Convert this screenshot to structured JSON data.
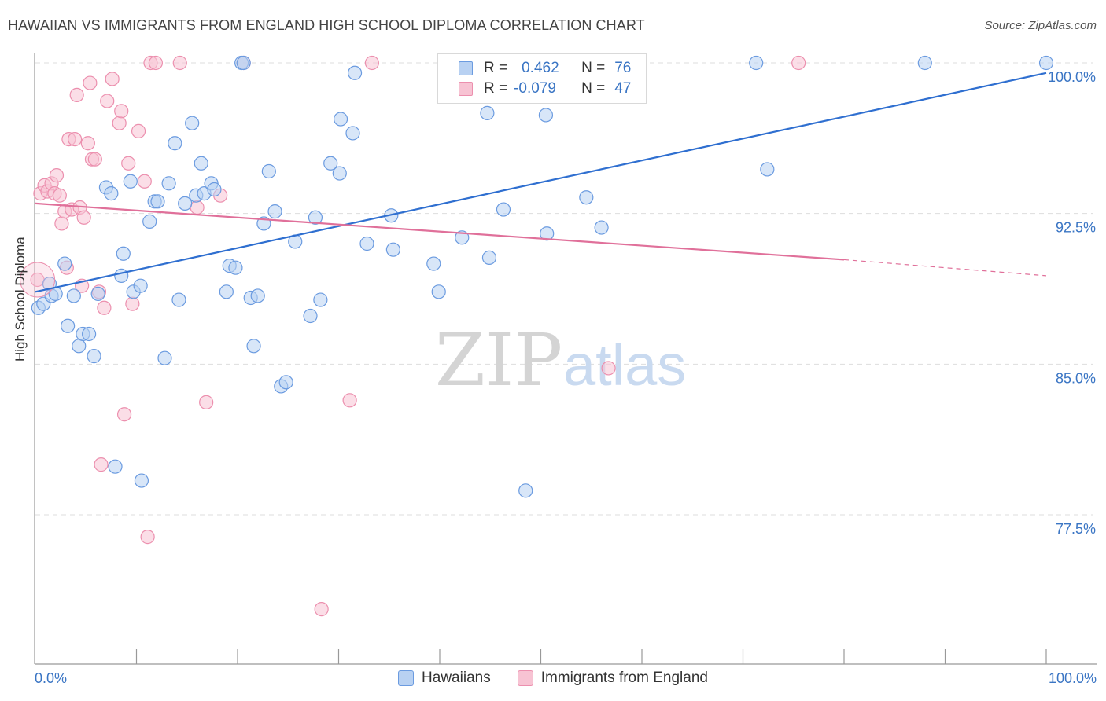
{
  "header": {
    "title": "HAWAIIAN VS IMMIGRANTS FROM ENGLAND HIGH SCHOOL DIPLOMA CORRELATION CHART",
    "source": "Source: ZipAtlas.com"
  },
  "legend": {
    "series1": {
      "r_label": "R =",
      "r_value": "0.462",
      "n_label": "N =",
      "n_value": "76"
    },
    "series2": {
      "r_label": "R =",
      "r_value": "-0.079",
      "n_label": "N =",
      "n_value": "47"
    }
  },
  "bottom_legend": {
    "series1": "Hawaiians",
    "series2": "Immigrants from England"
  },
  "watermark": {
    "zip": "ZIP",
    "atlas": "atlas"
  },
  "colors": {
    "blue_fill": "#b8d1f2",
    "blue_stroke": "#6b9be0",
    "blue_line": "#2f6fd0",
    "pink_fill": "#f7c3d3",
    "pink_stroke": "#ec8fae",
    "pink_line": "#e0709a",
    "axis_label": "#3a75c4",
    "grid": "#dddddd"
  },
  "chart_data": {
    "type": "scatter",
    "title": "HAWAIIAN VS IMMIGRANTS FROM ENGLAND HIGH SCHOOL DIPLOMA CORRELATION CHART",
    "xlabel": "",
    "ylabel": "High School Diploma",
    "xlim": [
      0,
      100
    ],
    "ylim": [
      71.0,
      101.5
    ],
    "x_tick_labels": [
      "0.0%",
      "100.0%"
    ],
    "y_ticks": [
      77.5,
      85.0,
      92.5,
      100.0
    ],
    "y_tick_labels": [
      "77.5%",
      "85.0%",
      "92.5%",
      "100.0%"
    ],
    "grid": true,
    "legend_position": "top-center",
    "series": [
      {
        "name": "Hawaiians",
        "color": "#6b9be0",
        "r": 0.462,
        "n": 76,
        "trend": {
          "x": [
            0,
            100
          ],
          "y": [
            88.6,
            99.5
          ],
          "extended_to": 100
        },
        "points": [
          [
            0.3,
            87.8
          ],
          [
            0.8,
            88.0
          ],
          [
            1.4,
            89.0
          ],
          [
            1.6,
            88.4
          ],
          [
            2.0,
            88.5
          ],
          [
            2.9,
            90.0
          ],
          [
            3.2,
            86.9
          ],
          [
            3.8,
            88.4
          ],
          [
            4.3,
            85.9
          ],
          [
            4.7,
            86.5
          ],
          [
            5.3,
            86.5
          ],
          [
            5.8,
            85.4
          ],
          [
            6.2,
            88.5
          ],
          [
            7.0,
            93.8
          ],
          [
            7.5,
            93.5
          ],
          [
            7.9,
            79.9
          ],
          [
            8.5,
            89.4
          ],
          [
            8.7,
            90.5
          ],
          [
            9.4,
            94.1
          ],
          [
            9.7,
            88.6
          ],
          [
            10.4,
            88.9
          ],
          [
            10.5,
            79.2
          ],
          [
            11.3,
            92.1
          ],
          [
            11.8,
            93.1
          ],
          [
            12.1,
            93.1
          ],
          [
            12.8,
            85.3
          ],
          [
            13.2,
            94.0
          ],
          [
            13.8,
            96.0
          ],
          [
            14.2,
            88.2
          ],
          [
            14.8,
            93.0
          ],
          [
            15.5,
            97.0
          ],
          [
            15.9,
            93.4
          ],
          [
            16.4,
            95.0
          ],
          [
            16.7,
            93.5
          ],
          [
            17.4,
            94.0
          ],
          [
            17.7,
            93.7
          ],
          [
            18.9,
            88.6
          ],
          [
            19.2,
            89.9
          ],
          [
            19.8,
            89.8
          ],
          [
            20.4,
            100.0
          ],
          [
            20.6,
            100.0
          ],
          [
            21.3,
            88.3
          ],
          [
            21.6,
            85.9
          ],
          [
            22.0,
            88.4
          ],
          [
            22.6,
            92.0
          ],
          [
            23.1,
            94.6
          ],
          [
            23.7,
            92.6
          ],
          [
            24.3,
            83.9
          ],
          [
            24.8,
            84.1
          ],
          [
            25.7,
            91.1
          ],
          [
            27.2,
            87.4
          ],
          [
            27.7,
            92.3
          ],
          [
            28.2,
            88.2
          ],
          [
            29.2,
            95.0
          ],
          [
            30.1,
            94.5
          ],
          [
            30.2,
            97.2
          ],
          [
            31.4,
            96.5
          ],
          [
            31.6,
            99.5
          ],
          [
            32.8,
            91.0
          ],
          [
            35.2,
            92.4
          ],
          [
            35.4,
            90.7
          ],
          [
            39.4,
            90.0
          ],
          [
            39.9,
            88.6
          ],
          [
            42.2,
            91.3
          ],
          [
            44.7,
            97.5
          ],
          [
            44.9,
            90.3
          ],
          [
            46.3,
            92.7
          ],
          [
            48.5,
            78.7
          ],
          [
            50.2,
            100.0
          ],
          [
            50.5,
            97.4
          ],
          [
            50.6,
            91.5
          ],
          [
            54.5,
            93.3
          ],
          [
            56.0,
            91.8
          ],
          [
            71.3,
            100.0
          ],
          [
            72.4,
            94.7
          ],
          [
            88.0,
            100.0
          ],
          [
            100.0,
            100.0
          ]
        ]
      },
      {
        "name": "Immigrants from England",
        "color": "#ec8fae",
        "r": -0.079,
        "n": 47,
        "trend": {
          "x": [
            0,
            80
          ],
          "y": [
            93.0,
            90.2
          ],
          "dashed_to": [
            100,
            89.4
          ]
        },
        "points": [
          [
            0.2,
            89.2
          ],
          [
            0.5,
            93.5
          ],
          [
            0.9,
            93.9
          ],
          [
            1.2,
            93.6
          ],
          [
            1.6,
            94.0
          ],
          [
            1.9,
            93.5
          ],
          [
            2.1,
            94.4
          ],
          [
            2.4,
            93.4
          ],
          [
            2.6,
            92.0
          ],
          [
            2.9,
            92.6
          ],
          [
            3.1,
            89.8
          ],
          [
            3.3,
            96.2
          ],
          [
            3.6,
            92.7
          ],
          [
            3.9,
            96.2
          ],
          [
            4.1,
            98.4
          ],
          [
            4.4,
            92.8
          ],
          [
            4.6,
            88.9
          ],
          [
            4.8,
            92.3
          ],
          [
            5.2,
            96.0
          ],
          [
            5.4,
            99.0
          ],
          [
            5.6,
            95.2
          ],
          [
            5.9,
            95.2
          ],
          [
            6.3,
            88.6
          ],
          [
            6.5,
            80.0
          ],
          [
            6.8,
            87.8
          ],
          [
            7.1,
            98.1
          ],
          [
            7.6,
            99.2
          ],
          [
            8.3,
            97.0
          ],
          [
            8.5,
            97.6
          ],
          [
            8.8,
            82.5
          ],
          [
            9.2,
            95.0
          ],
          [
            9.6,
            88.0
          ],
          [
            10.2,
            96.6
          ],
          [
            10.8,
            94.1
          ],
          [
            11.1,
            76.4
          ],
          [
            11.4,
            100.0
          ],
          [
            11.9,
            100.0
          ],
          [
            14.3,
            100.0
          ],
          [
            16.0,
            92.8
          ],
          [
            16.9,
            83.1
          ],
          [
            18.3,
            93.4
          ],
          [
            20.6,
            100.0
          ],
          [
            28.3,
            72.8
          ],
          [
            31.1,
            83.2
          ],
          [
            33.3,
            100.0
          ],
          [
            56.7,
            84.8
          ],
          [
            75.5,
            100.0
          ]
        ]
      }
    ]
  }
}
